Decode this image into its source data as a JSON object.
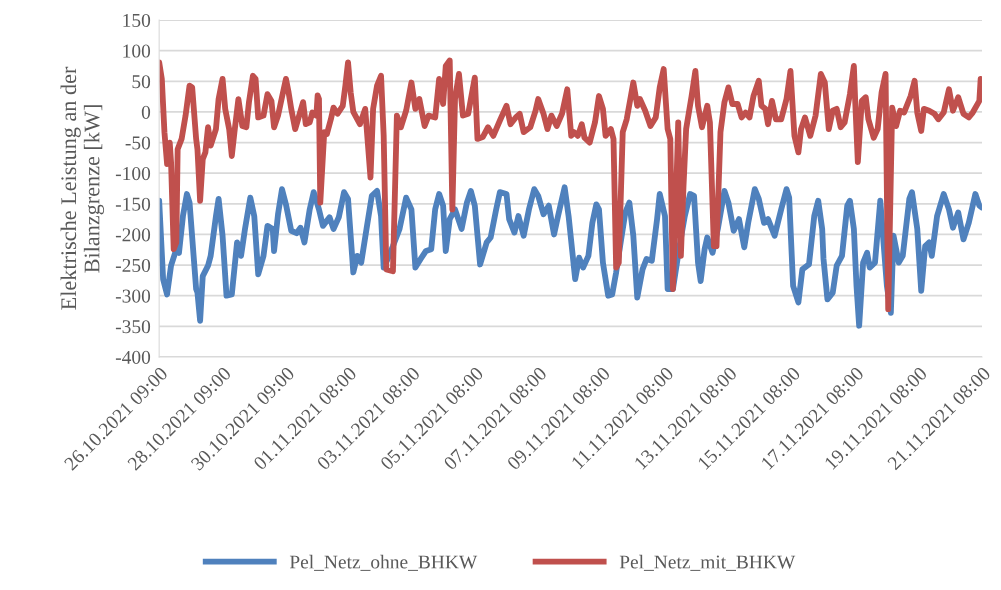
{
  "chart_data": {
    "type": "line",
    "ylabel": "Elektrische Leistung an der\nBilanzgrenze [kW]",
    "xlim": [
      "2021-10-26T09:00",
      "2021-11-21T08:00"
    ],
    "xticks": [
      {
        "value": "2021-10-26T09:00",
        "label": "26.10.2021 09:00"
      },
      {
        "value": "2021-10-28T09:00",
        "label": "28.10.2021 09:00"
      },
      {
        "value": "2021-10-30T09:00",
        "label": "30.10.2021 09:00"
      },
      {
        "value": "2021-11-01T08:00",
        "label": "01.11.2021 08:00"
      },
      {
        "value": "2021-11-03T08:00",
        "label": "03.11.2021 08:00"
      },
      {
        "value": "2021-11-05T08:00",
        "label": "05.11.2021 08:00"
      },
      {
        "value": "2021-11-07T08:00",
        "label": "07.11.2021 08:00"
      },
      {
        "value": "2021-11-09T08:00",
        "label": "09.11.2021 08:00"
      },
      {
        "value": "2021-11-11T08:00",
        "label": "11.11.2021 08:00"
      },
      {
        "value": "2021-11-13T08:00",
        "label": "13.11.2021 08:00"
      },
      {
        "value": "2021-11-15T08:00",
        "label": "15.11.2021 08:00"
      },
      {
        "value": "2021-11-17T08:00",
        "label": "17.11.2021 08:00"
      },
      {
        "value": "2021-11-19T08:00",
        "label": "19.11.2021 08:00"
      },
      {
        "value": "2021-11-21T08:00",
        "label": "21.11.2021 08:00"
      }
    ],
    "ylim": [
      -400,
      150
    ],
    "yticks": [
      -400,
      -350,
      -300,
      -250,
      -200,
      -150,
      -100,
      -50,
      0,
      50,
      100,
      150
    ],
    "grid": "y",
    "legend": "bottom",
    "marker": "none",
    "line_style": "solid",
    "series": [
      {
        "name": "Pel_Netz_ohne_BHKW",
        "color": "#4f81bd",
        "x": [
          "2021-10-26T09:00",
          "2021-10-26T12:00",
          "2021-10-26T15:00",
          "2021-10-26T18:00",
          "2021-10-26T22:00",
          "2021-10-27T00:00",
          "2021-10-27T03:00",
          "2021-10-27T06:00",
          "2021-10-27T08:00",
          "2021-10-27T13:00",
          "2021-10-27T14:00",
          "2021-10-27T16:00",
          "2021-10-27T18:00",
          "2021-10-27T22:00",
          "2021-10-28T00:00",
          "2021-10-28T04:00",
          "2021-10-28T06:00",
          "2021-10-28T09:00",
          "2021-10-28T12:00",
          "2021-10-28T16:00",
          "2021-10-28T20:00",
          "2021-10-28T23:00",
          "2021-10-29T02:00",
          "2021-10-29T06:00",
          "2021-10-29T09:00",
          "2021-10-29T12:00",
          "2021-10-29T16:00",
          "2021-10-29T19:00",
          "2021-10-29T23:00",
          "2021-10-30T00:00",
          "2021-10-30T03:00",
          "2021-10-30T06:00",
          "2021-10-30T09:00",
          "2021-10-30T13:00",
          "2021-10-30T17:00",
          "2021-10-30T20:00",
          "2021-10-30T23:00",
          "2021-10-31T03:00",
          "2021-10-31T06:00",
          "2021-10-31T10:00",
          "2021-10-31T13:00",
          "2021-10-31T18:00",
          "2021-10-31T21:00",
          "2021-11-01T01:00",
          "2021-11-01T05:00",
          "2021-11-01T08:00",
          "2021-11-01T12:00",
          "2021-11-01T15:00",
          "2021-11-01T18:00",
          "2021-11-01T22:00",
          "2021-11-02T02:00",
          "2021-11-02T06:00",
          "2021-11-02T09:00",
          "2021-11-02T11:00",
          "2021-11-02T14:00",
          "2021-11-02T18:00",
          "2021-11-02T23:00",
          "2021-11-03T04:00",
          "2021-11-03T08:00",
          "2021-11-03T11:00",
          "2021-11-03T15:00",
          "2021-11-03T19:00",
          "2021-11-03T23:00",
          "2021-11-04T02:00",
          "2021-11-04T05:00",
          "2021-11-04T08:00",
          "2021-11-04T10:00",
          "2021-11-04T13:00",
          "2021-11-04T17:00",
          "2021-11-04T22:00",
          "2021-11-05T02:00",
          "2021-11-05T05:00",
          "2021-11-05T08:00",
          "2021-11-05T12:00",
          "2021-11-05T17:00",
          "2021-11-05T20:00",
          "2021-11-06T00:00",
          "2021-11-06T03:00",
          "2021-11-06T08:00",
          "2021-11-06T10:00",
          "2021-11-06T14:00",
          "2021-11-06T17:00",
          "2021-11-06T21:00",
          "2021-11-07T01:00",
          "2021-11-07T05:00",
          "2021-11-07T08:00",
          "2021-11-07T12:00",
          "2021-11-07T16:00",
          "2021-11-07T20:00",
          "2021-11-07T23:00",
          "2021-11-08T04:00",
          "2021-11-08T07:00",
          "2021-11-08T12:00",
          "2021-11-08T15:00",
          "2021-11-08T18:00",
          "2021-11-08T22:00",
          "2021-11-09T01:00",
          "2021-11-09T04:00",
          "2021-11-09T06:00",
          "2021-11-09T09:00",
          "2021-11-09T13:00",
          "2021-11-09T16:00",
          "2021-11-09T19:00",
          "2021-11-09T22:00",
          "2021-11-10T02:00",
          "2021-11-10T05:00",
          "2021-11-10T08:00",
          "2021-11-10T11:00",
          "2021-11-10T15:00",
          "2021-11-10T18:00",
          "2021-11-10T22:00",
          "2021-11-11T02:00",
          "2021-11-11T04:00",
          "2021-11-11T08:00",
          "2021-11-11T10:00",
          "2021-11-11T14:00",
          "2021-11-11T19:00",
          "2021-11-11T23:00",
          "2021-11-12T03:00",
          "2021-11-12T06:00",
          "2021-11-12T09:00",
          "2021-11-12T11:00",
          "2021-11-12T14:00",
          "2021-11-12T16:00",
          "2021-11-12T20:00",
          "2021-11-13T00:00",
          "2021-11-13T05:00",
          "2021-11-13T08:00",
          "2021-11-13T12:00",
          "2021-11-13T16:00",
          "2021-11-13T20:00",
          "2021-11-13T23:00",
          "2021-11-14T04:00",
          "2021-11-14T07:00",
          "2021-11-14T11:00",
          "2021-11-14T14:00",
          "2021-11-14T19:00",
          "2021-11-15T00:00",
          "2021-11-15T04:00",
          "2021-11-15T06:00",
          "2021-11-15T09:00",
          "2021-11-15T13:00",
          "2021-11-15T16:00",
          "2021-11-15T21:00",
          "2021-11-16T01:00",
          "2021-11-16T04:00",
          "2021-11-16T07:00",
          "2021-11-16T08:00",
          "2021-11-16T11:00",
          "2021-11-16T15:00",
          "2021-11-16T18:00",
          "2021-11-16T22:00",
          "2021-11-17T02:00",
          "2021-11-17T04:00",
          "2021-11-17T07:00",
          "2021-11-17T09:00",
          "2021-11-17T11:00",
          "2021-11-17T14:00",
          "2021-11-17T17:00",
          "2021-11-17T19:00",
          "2021-11-17T23:00",
          "2021-11-18T03:00",
          "2021-11-18T08:00",
          "2021-11-18T11:00",
          "2021-11-18T13:00",
          "2021-11-18T17:00",
          "2021-11-18T20:00",
          "2021-11-19T01:00",
          "2021-11-19T03:00",
          "2021-11-19T07:00",
          "2021-11-19T10:00",
          "2021-11-19T13:00",
          "2021-11-19T16:00",
          "2021-11-19T18:00",
          "2021-11-19T22:00",
          "2021-11-20T03:00",
          "2021-11-20T07:00",
          "2021-11-20T10:00",
          "2021-11-20T14:00",
          "2021-11-20T18:00",
          "2021-11-20T22:00",
          "2021-11-21T03:00",
          "2021-11-21T06:00",
          "2021-11-21T08:00"
        ],
        "values": [
          -145,
          -273,
          -298,
          -251,
          -224,
          -230,
          -170,
          -134,
          -148,
          -289,
          -295,
          -341,
          -268,
          -251,
          -235,
          -170,
          -142,
          -202,
          -300,
          -298,
          -213,
          -235,
          -191,
          -140,
          -170,
          -265,
          -235,
          -186,
          -191,
          -227,
          -167,
          -126,
          -151,
          -194,
          -198,
          -189,
          -213,
          -159,
          -131,
          -159,
          -186,
          -172,
          -191,
          -172,
          -131,
          -142,
          -262,
          -235,
          -246,
          -191,
          -137,
          -129,
          -170,
          -254,
          -240,
          -219,
          -191,
          -140,
          -159,
          -254,
          -240,
          -227,
          -224,
          -159,
          -134,
          -153,
          -227,
          -175,
          -159,
          -191,
          -148,
          -129,
          -153,
          -249,
          -213,
          -205,
          -161,
          -131,
          -134,
          -175,
          -197,
          -170,
          -202,
          -159,
          -126,
          -137,
          -167,
          -153,
          -200,
          -170,
          -123,
          -170,
          -273,
          -238,
          -254,
          -235,
          -181,
          -151,
          -159,
          -246,
          -300,
          -298,
          -262,
          -219,
          -164,
          -148,
          -202,
          -303,
          -257,
          -240,
          -243,
          -175,
          -134,
          -170,
          -289,
          -289,
          -219,
          -170,
          -134,
          -137,
          -246,
          -276,
          -224,
          -205,
          -230,
          -191,
          -129,
          -148,
          -194,
          -175,
          -221,
          -181,
          -126,
          -142,
          -181,
          -175,
          -202,
          -159,
          -126,
          -140,
          -284,
          -311,
          -257,
          -249,
          -170,
          -145,
          -191,
          -240,
          -306,
          -295,
          -251,
          -235,
          -153,
          -145,
          -191,
          -284,
          -349,
          -246,
          -230,
          -254,
          -246,
          -145,
          -284,
          -328,
          -202,
          -246,
          -235,
          -142,
          -131,
          -191,
          -292,
          -219,
          -213,
          -235,
          -170,
          -134,
          -159,
          -189,
          -164,
          -208,
          -181,
          -134,
          -153,
          -156
        ]
      },
      {
        "name": "Pel_Netz_mit_BHKW",
        "color": "#c0504d",
        "x": [
          "2021-10-26T09:00",
          "2021-10-26T11:00",
          "2021-10-26T13:00",
          "2021-10-26T15:00",
          "2021-10-26T17:00",
          "2021-10-26T18:00",
          "2021-10-26T20:00",
          "2021-10-26T22:00",
          "2021-10-26T23:00",
          "2021-10-27T02:00",
          "2021-10-27T05:00",
          "2021-10-27T08:00",
          "2021-10-27T10:00",
          "2021-10-27T13:00",
          "2021-10-27T14:00",
          "2021-10-27T16:00",
          "2021-10-27T18:00",
          "2021-10-27T20:00",
          "2021-10-27T22:00",
          "2021-10-28T00:00",
          "2021-10-28T04:00",
          "2021-10-28T06:00",
          "2021-10-28T09:00",
          "2021-10-28T11:00",
          "2021-10-28T14:00",
          "2021-10-28T16:00",
          "2021-10-28T18:00",
          "2021-10-28T21:00",
          "2021-10-29T00:00",
          "2021-10-29T03:00",
          "2021-10-29T05:00",
          "2021-10-29T08:00",
          "2021-10-29T10:00",
          "2021-10-29T12:00",
          "2021-10-29T16:00",
          "2021-10-29T19:00",
          "2021-10-29T22:00",
          "2021-10-30T00:00",
          "2021-10-30T03:00",
          "2021-10-30T06:00",
          "2021-10-30T09:00",
          "2021-10-30T11:00",
          "2021-10-30T13:00",
          "2021-10-30T16:00",
          "2021-10-30T19:00",
          "2021-10-30T22:00",
          "2021-10-31T00:00",
          "2021-10-31T03:00",
          "2021-10-31T05:00",
          "2021-10-31T08:00",
          "2021-10-31T09:00",
          "2021-10-31T10:00",
          "2021-10-31T11:00",
          "2021-10-31T14:00",
          "2021-10-31T16:00",
          "2021-10-31T19:00",
          "2021-10-31T21:00",
          "2021-11-01T00:00",
          "2021-11-01T04:00",
          "2021-11-01T06:00",
          "2021-11-01T08:00",
          "2021-11-01T10:00",
          "2021-11-01T12:00",
          "2021-11-01T17:00",
          "2021-11-01T21:00",
          "2021-11-02T01:00",
          "2021-11-02T03:00",
          "2021-11-02T06:00",
          "2021-11-02T09:00",
          "2021-11-02T11:00",
          "2021-11-02T13:00",
          "2021-11-02T18:00",
          "2021-11-02T21:00",
          "2021-11-03T00:00",
          "2021-11-03T04:00",
          "2021-11-03T08:00",
          "2021-11-03T11:00",
          "2021-11-03T14:00",
          "2021-11-03T18:00",
          "2021-11-03T21:00",
          "2021-11-04T02:00",
          "2021-11-04T05:00",
          "2021-11-04T08:00",
          "2021-11-04T10:00",
          "2021-11-04T13:00",
          "2021-11-04T15:00",
          "2021-11-04T17:00",
          "2021-11-04T20:00",
          "2021-11-04T23:00",
          "2021-11-05T03:00",
          "2021-11-05T08:00",
          "2021-11-05T10:00",
          "2021-11-05T14:00",
          "2021-11-05T18:00",
          "2021-11-05T22:00",
          "2021-11-06T03:00",
          "2021-11-06T08:00",
          "2021-11-06T11:00",
          "2021-11-06T15:00",
          "2021-11-06T18:00",
          "2021-11-06T21:00",
          "2021-11-07T02:00",
          "2021-11-07T06:00",
          "2021-11-07T08:00",
          "2021-11-07T12:00",
          "2021-11-07T15:00",
          "2021-11-07T18:00",
          "2021-11-07T22:00",
          "2021-11-08T02:00",
          "2021-11-08T06:00",
          "2021-11-08T09:00",
          "2021-11-08T11:00",
          "2021-11-08T14:00",
          "2021-11-08T17:00",
          "2021-11-08T19:00",
          "2021-11-08T23:00",
          "2021-11-09T03:00",
          "2021-11-09T06:00",
          "2021-11-09T09:00",
          "2021-11-09T11:00",
          "2021-11-09T15:00",
          "2021-11-09T17:00",
          "2021-11-09T19:00",
          "2021-11-09T21:00",
          "2021-11-10T00:00",
          "2021-11-10T03:00",
          "2021-11-10T06:00",
          "2021-11-10T08:00",
          "2021-11-10T11:00",
          "2021-11-10T13:00",
          "2021-11-10T17:00",
          "2021-11-10T21:00",
          "2021-11-11T01:00",
          "2021-11-11T04:00",
          "2021-11-11T07:00",
          "2021-11-11T10:00",
          "2021-11-11T12:00",
          "2021-11-11T14:00",
          "2021-11-11T17:00",
          "2021-11-11T18:00",
          "2021-11-11T20:00",
          "2021-11-11T22:00",
          "2021-11-12T00:00",
          "2021-11-12T04:00",
          "2021-11-12T07:00",
          "2021-11-12T09:00",
          "2021-11-12T12:00",
          "2021-11-12T16:00",
          "2021-11-12T18:00",
          "2021-11-12T21:00",
          "2021-11-12T23:00",
          "2021-11-13T02:00",
          "2021-11-13T05:00",
          "2021-11-13T08:00",
          "2021-11-13T11:00",
          "2021-11-13T15:00",
          "2021-11-13T18:00",
          "2021-11-13T21:00",
          "2021-11-14T00:00",
          "2021-11-14T03:00",
          "2021-11-14T07:00",
          "2021-11-14T09:00",
          "2021-11-14T12:00",
          "2021-11-14T14:00",
          "2021-11-14T17:00",
          "2021-11-14T20:00",
          "2021-11-15T00:00",
          "2021-11-15T04:00",
          "2021-11-15T07:00",
          "2021-11-15T10:00",
          "2021-11-15T13:00",
          "2021-11-15T15:00",
          "2021-11-15T18:00",
          "2021-11-15T22:00",
          "2021-11-16T02:00",
          "2021-11-16T06:00",
          "2021-11-16T09:00",
          "2021-11-16T12:00",
          "2021-11-16T15:00",
          "2021-11-16T18:00",
          "2021-11-16T21:00",
          "2021-11-17T00:00",
          "2021-11-17T04:00",
          "2021-11-17T07:00",
          "2021-11-17T08:00",
          "2021-11-17T10:00",
          "2021-11-17T13:00",
          "2021-11-17T16:00",
          "2021-11-17T18:00",
          "2021-11-17T22:00",
          "2021-11-18T01:00",
          "2021-11-18T04:00",
          "2021-11-18T07:00",
          "2021-11-18T09:00",
          "2021-11-18T12:00",
          "2021-11-18T15:00",
          "2021-11-18T18:00",
          "2021-11-18T21:00",
          "2021-11-19T02:00",
          "2021-11-19T05:00",
          "2021-11-19T07:00",
          "2021-11-19T10:00",
          "2021-11-19T12:00",
          "2021-11-19T16:00",
          "2021-11-19T20:00",
          "2021-11-19T23:00",
          "2021-11-20T03:00",
          "2021-11-20T07:00",
          "2021-11-20T10:00",
          "2021-11-20T14:00",
          "2021-11-20T18:00",
          "2021-11-20T22:00",
          "2021-11-21T01:00",
          "2021-11-21T06:00",
          "2021-11-21T07:00",
          "2021-11-21T08:00"
        ],
        "values": [
          81,
          54,
          -33,
          -85,
          -50,
          -82,
          -224,
          -213,
          -61,
          -44,
          -6,
          43,
          40,
          -44,
          -61,
          -145,
          -77,
          -66,
          -25,
          -55,
          -28,
          21,
          54,
          5,
          -28,
          -72,
          -33,
          21,
          -23,
          -25,
          16,
          59,
          54,
          -9,
          -6,
          29,
          18,
          -25,
          -6,
          24,
          54,
          32,
          5,
          -28,
          -6,
          16,
          -20,
          -17,
          -1,
          -6,
          27,
          21,
          -148,
          -33,
          -36,
          -12,
          7,
          -3,
          10,
          43,
          81,
          32,
          0,
          -20,
          5,
          -107,
          5,
          43,
          59,
          -39,
          -257,
          -260,
          -6,
          -25,
          2,
          48,
          5,
          21,
          -23,
          -6,
          -9,
          54,
          13,
          75,
          84,
          -159,
          21,
          62,
          -6,
          -3,
          56,
          -44,
          -41,
          -25,
          -39,
          -14,
          10,
          -20,
          -9,
          -3,
          -33,
          -25,
          2,
          21,
          -3,
          -28,
          -6,
          -23,
          -3,
          37,
          -39,
          -33,
          -39,
          -20,
          -42,
          -50,
          -17,
          26,
          5,
          -39,
          -28,
          -44,
          -254,
          -246,
          -33,
          -12,
          24,
          48,
          10,
          21,
          2,
          -23,
          -9,
          40,
          70,
          -28,
          -44,
          -289,
          -93,
          -17,
          -235,
          -121,
          -28,
          24,
          67,
          10,
          -25,
          10,
          -17,
          -219,
          -219,
          -33,
          16,
          40,
          13,
          13,
          -9,
          -1,
          -9,
          26,
          51,
          10,
          5,
          -20,
          18,
          -12,
          -12,
          21,
          67,
          -39,
          -66,
          -28,
          -9,
          -39,
          -6,
          62,
          48,
          -28,
          2,
          5,
          -25,
          -17,
          29,
          75,
          18,
          -82,
          18,
          24,
          -12,
          -42,
          -28,
          32,
          62,
          -322,
          7,
          -23,
          2,
          -1,
          26,
          51,
          -1,
          -31,
          5,
          2,
          -3,
          -12,
          -1,
          37,
          2,
          24,
          -3,
          -9,
          -1,
          18,
          54,
          29
        ]
      }
    ]
  }
}
